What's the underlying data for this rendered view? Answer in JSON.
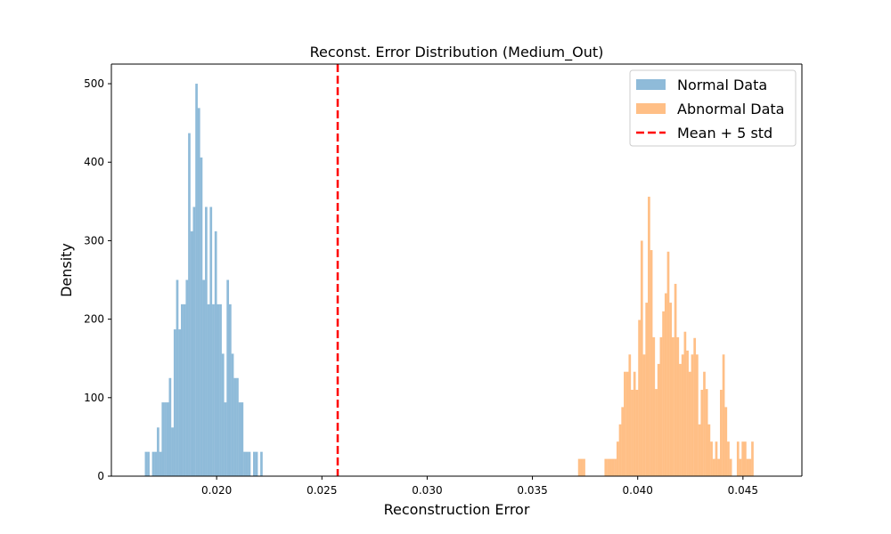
{
  "chart_data": {
    "type": "histogram",
    "title": "Reconst. Error Distribution (Medium_Out)",
    "xlabel": "Reconstruction Error",
    "ylabel": "Density",
    "xlim": [
      0.015,
      0.0478
    ],
    "ylim": [
      0,
      525
    ],
    "x_ticks": [
      0.02,
      0.025,
      0.03,
      0.035,
      0.04,
      0.045
    ],
    "x_tick_labels": [
      "0.020",
      "0.025",
      "0.030",
      "0.035",
      "0.040",
      "0.045"
    ],
    "y_ticks": [
      0,
      100,
      200,
      300,
      400,
      500
    ],
    "y_tick_labels": [
      "0",
      "100",
      "200",
      "300",
      "400",
      "500"
    ],
    "legend": {
      "location": "top-right",
      "frame": true
    },
    "series": [
      {
        "name": "Normal Data",
        "color": "#1f77b4",
        "alpha": 0.5,
        "bin_width": 0.0001142,
        "bin_starts": [
          0.016589,
          0.016703,
          0.016817,
          0.016931,
          0.017045,
          0.01716,
          0.017274,
          0.017388,
          0.017502,
          0.017617,
          0.017731,
          0.017845,
          0.017959,
          0.018074,
          0.018188,
          0.018302,
          0.018416,
          0.018531,
          0.018645,
          0.018759,
          0.018873,
          0.018988,
          0.019102,
          0.019216,
          0.01933,
          0.019445,
          0.019559,
          0.019673,
          0.019787,
          0.019902,
          0.020016,
          0.02013,
          0.020244,
          0.020359,
          0.020473,
          0.020587,
          0.020701,
          0.020816,
          0.02093,
          0.021044,
          0.021158,
          0.021273,
          0.021387,
          0.021501,
          0.021615,
          0.02173,
          0.021844,
          0.021958,
          0.022072,
          0.022187,
          0.022301,
          0.022415,
          0.022529,
          0.022644,
          0.022758,
          0.022872,
          0.022986,
          0.023101
        ],
        "densities": [
          31,
          31,
          0,
          31,
          31,
          62,
          31,
          94,
          94,
          94,
          125,
          62,
          187,
          250,
          187,
          219,
          219,
          250,
          437,
          312,
          343,
          500,
          469,
          406,
          250,
          343,
          219,
          343,
          219,
          312,
          219,
          219,
          156,
          94,
          250,
          219,
          156,
          125,
          125,
          94,
          94,
          31,
          31,
          31,
          0,
          31,
          31,
          0,
          31,
          0,
          0,
          0,
          0,
          0,
          0,
          0,
          0,
          0
        ]
      },
      {
        "name": "Abnormal Data",
        "color": "#ff7f0e",
        "alpha": 0.5,
        "bin_width": 0.0001142,
        "bin_starts": [
          0.037167,
          0.037281,
          0.037395,
          0.037509,
          0.037624,
          0.037738,
          0.037852,
          0.037966,
          0.038081,
          0.038195,
          0.038309,
          0.038423,
          0.038538,
          0.038652,
          0.038766,
          0.03888,
          0.038995,
          0.039109,
          0.039223,
          0.039337,
          0.039452,
          0.039566,
          0.03968,
          0.039794,
          0.039909,
          0.040023,
          0.040137,
          0.040251,
          0.040366,
          0.04048,
          0.040594,
          0.040708,
          0.040823,
          0.040937,
          0.041051,
          0.041165,
          0.04128,
          0.041394,
          0.041508,
          0.041622,
          0.041737,
          0.041851,
          0.041965,
          0.042079,
          0.042194,
          0.042308,
          0.042422,
          0.042536,
          0.042651,
          0.042765,
          0.042879,
          0.042993,
          0.043108,
          0.043222,
          0.043336,
          0.04345,
          0.043565,
          0.043679,
          0.043793,
          0.043907,
          0.044022,
          0.044136,
          0.04425,
          0.044364,
          0.044479,
          0.044593,
          0.044707,
          0.044821,
          0.044936,
          0.04505,
          0.045164,
          0.045278,
          0.045393,
          0.045507,
          0.045621,
          0.045735,
          0.04585,
          0.045964,
          0.046078
        ],
        "densities": [
          22,
          22,
          22,
          0,
          0,
          0,
          0,
          0,
          0,
          0,
          0,
          22,
          22,
          22,
          22,
          22,
          44,
          66,
          88,
          133,
          133,
          155,
          110,
          133,
          110,
          199,
          300,
          155,
          221,
          356,
          288,
          177,
          111,
          143,
          177,
          210,
          233,
          286,
          221,
          177,
          245,
          177,
          143,
          155,
          184,
          160,
          133,
          155,
          176,
          155,
          66,
          110,
          133,
          111,
          66,
          44,
          22,
          44,
          22,
          110,
          155,
          88,
          44,
          22,
          0,
          0,
          44,
          22,
          44,
          44,
          22,
          22,
          44,
          0,
          0,
          0,
          0,
          0,
          0
        ]
      },
      {
        "name": "Mean + 5 std",
        "kind": "vline",
        "color": "#ff0000",
        "style": "dashed",
        "x": 0.02575
      }
    ]
  }
}
